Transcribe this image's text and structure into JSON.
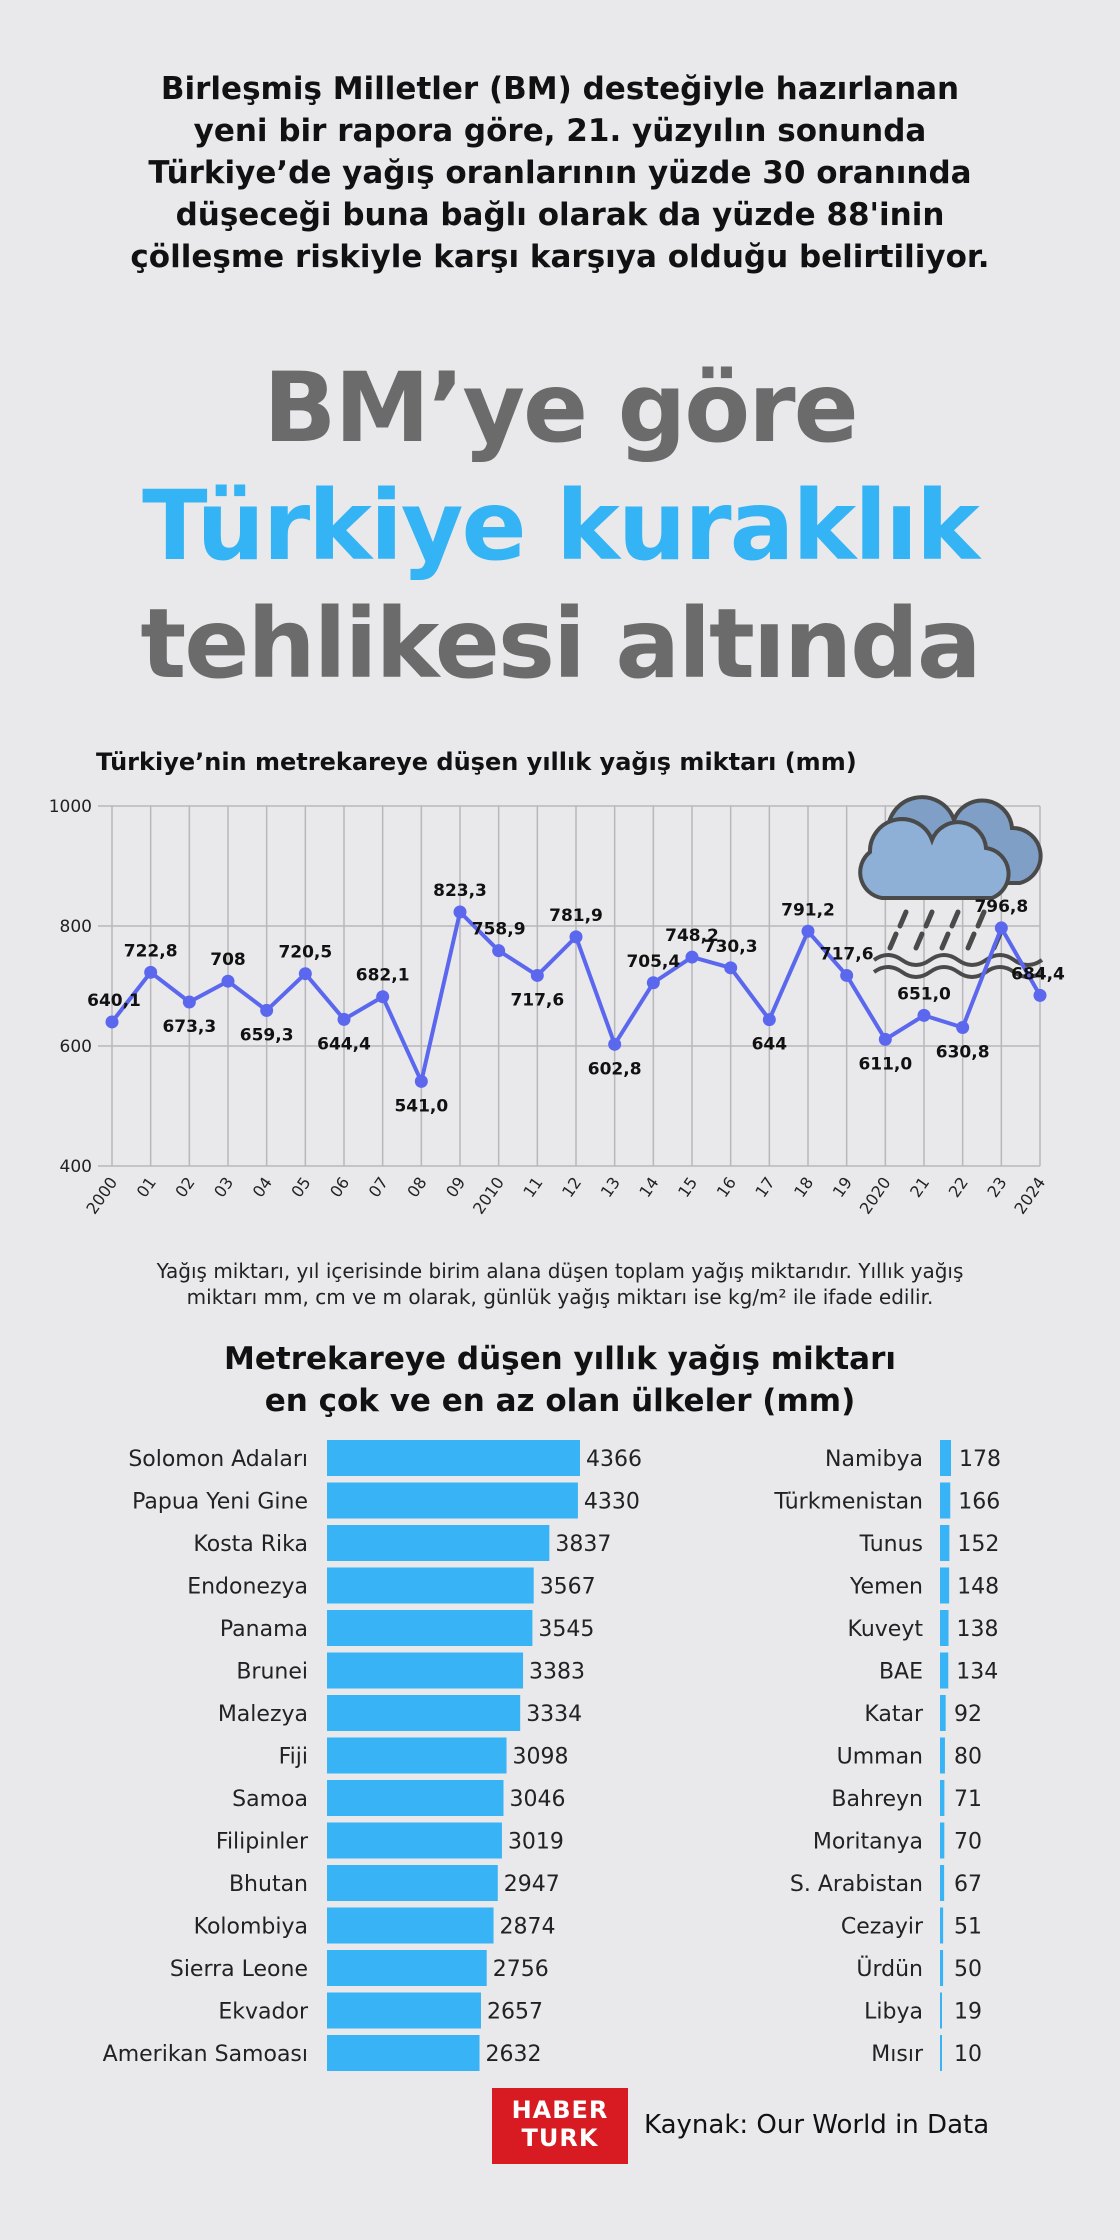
{
  "intro": {
    "line1": "Birleşmiş Milletler (BM) desteğiyle hazırlanan",
    "line2": "yeni bir rapora göre, 21. yüzyılın sonunda",
    "line3": "Türkiye’de yağış oranlarının yüzde 30 oranında",
    "line4": "düşeceği buna bağlı olarak da yüzde 88'inin",
    "line5": "çölleşme riskiyle karşı karşıya olduğu belirtiliyor."
  },
  "headline": {
    "line1": "BM’ye göre",
    "line2": "Türkiye kuraklık",
    "line3": "tehlikesi altında"
  },
  "colors": {
    "accent": "#35b4f5",
    "line": "#5b68ee",
    "bar": "#38b3f6",
    "headline_gray": "#6b6b6b",
    "brand_red": "#d81b22"
  },
  "icons": {
    "weather": "rain-cloud-icon"
  },
  "note": {
    "line1": "Yağış miktarı, yıl içerisinde birim alana düşen toplam yağış miktarıdır. Yıllık yağış",
    "line2": "miktarı mm, cm ve m olarak, günlük yağış miktarı ise kg/m² ile ifade edilir."
  },
  "footer": {
    "logo_line1": "HABER",
    "logo_line2": "TURK",
    "source": "Kaynak: Our World in Data"
  },
  "chart_data": [
    {
      "type": "line",
      "title": "Türkiye’nin metrekareye düşen yıllık yağış miktarı (mm)",
      "x": [
        "2000",
        "01",
        "02",
        "03",
        "04",
        "05",
        "06",
        "07",
        "08",
        "09",
        "2010",
        "11",
        "12",
        "13",
        "14",
        "15",
        "16",
        "17",
        "18",
        "19",
        "2020",
        "21",
        "22",
        "23",
        "2024"
      ],
      "series": [
        {
          "values": [
            640.1,
            722.8,
            673.3,
            708,
            659.3,
            720.5,
            644.4,
            682.1,
            541.0,
            823.3,
            758.9,
            717.6,
            781.9,
            602.8,
            705.4,
            748.2,
            730.3,
            644,
            791.2,
            717.6,
            611.0,
            651.0,
            630.8,
            796.8,
            684.4
          ]
        }
      ],
      "labels": [
        "640,1",
        "722,8",
        "673,3",
        "708",
        "659,3",
        "720,5",
        "644,4",
        "682,1",
        "541,0",
        "823,3",
        "758,9",
        "717,6",
        "781,9",
        "602,8",
        "705,4",
        "748,2",
        "730,3",
        "644",
        "791,2",
        "717,6",
        "611,0",
        "651,0",
        "630,8",
        "796,8",
        "684,4"
      ],
      "yticks": [
        "400",
        "600",
        "800",
        "1000"
      ],
      "ylim": [
        400,
        1000
      ],
      "grid": true
    },
    {
      "type": "bar",
      "title": "Metrekareye düşen yıllık yağış miktarı en çok ve en az olan ülkeler (mm)",
      "title_line1": "Metrekareye düşen yıllık yağış miktarı",
      "title_line2": "en çok ve en az olan ülkeler (mm)",
      "groups": [
        {
          "categories": [
            "Solomon Adaları",
            "Papua Yeni Gine",
            "Kosta Rika",
            "Endonezya",
            "Panama",
            "Brunei",
            "Malezya",
            "Fiji",
            "Samoa",
            "Filipinler",
            "Bhutan",
            "Kolombiya",
            "Sierra Leone",
            "Ekvador",
            "Amerikan Samoası"
          ],
          "values": [
            4366,
            4330,
            3837,
            3567,
            3545,
            3383,
            3334,
            3098,
            3046,
            3019,
            2947,
            2874,
            2756,
            2657,
            2632
          ]
        },
        {
          "categories": [
            "Namibya",
            "Türkmenistan",
            "Tunus",
            "Yemen",
            "Kuveyt",
            "BAE",
            "Katar",
            "Umman",
            "Bahreyn",
            "Moritanya",
            "S. Arabistan",
            "Cezayir",
            "Ürdün",
            "Libya",
            "Mısır"
          ],
          "values": [
            178,
            166,
            152,
            148,
            138,
            134,
            92,
            80,
            71,
            70,
            67,
            51,
            50,
            19,
            10
          ]
        }
      ]
    }
  ]
}
